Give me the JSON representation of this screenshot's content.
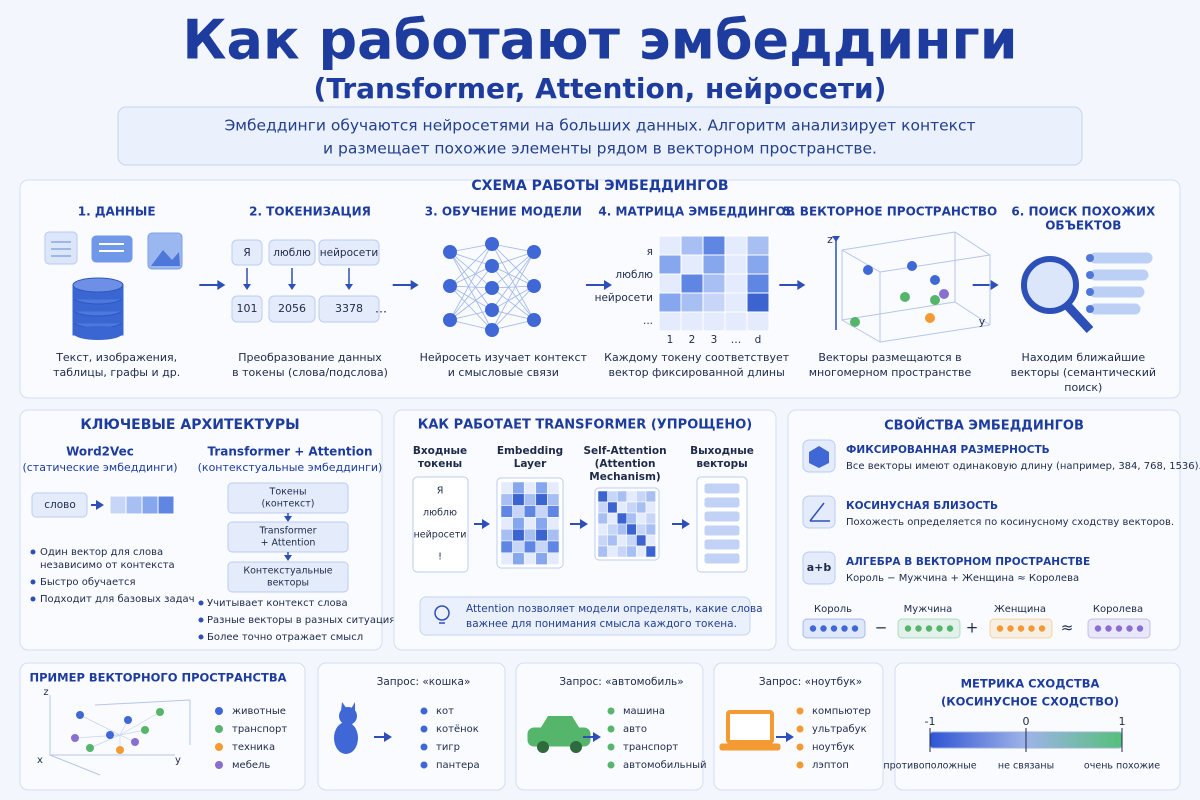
{
  "header": {
    "title": "Как работают эмбеддинги",
    "subtitle": "(Transformer, Attention, нейросети)",
    "intro": [
      "Эмбеддинги обучаются нейросетями на больших данных. Алгоритм анализирует контекст",
      "и размещает похожие элементы рядом в векторном пространстве."
    ]
  },
  "pipeline": {
    "title": "СХЕМА РАБОТЫ ЭМБЕДДИНГОВ",
    "steps": [
      {
        "title": [
          "1. ДАННЫЕ"
        ],
        "caption": [
          "Текст, изображения,",
          "таблицы, графы и др."
        ]
      },
      {
        "title": [
          "2. ТОКЕНИЗАЦИЯ"
        ],
        "caption": [
          "Преобразование данных",
          "в токены (слова/подслова)"
        ],
        "tokens": [
          "Я",
          "люблю",
          "нейросети"
        ],
        "ids": [
          101,
          2056,
          3378
        ],
        "ellipsis": "…"
      },
      {
        "title": [
          "3. ОБУЧЕНИЕ МОДЕЛИ"
        ],
        "caption": [
          "Нейросеть изучает контекст",
          "и смысловые связи"
        ]
      },
      {
        "title": [
          "4. МАТРИЦА ЭМБЕДДИНГОВ"
        ],
        "caption": [
          "Каждому токену соответствует",
          "вектор фиксированной длины"
        ],
        "rows": [
          "я",
          "люблю",
          "нейросети",
          "..."
        ],
        "cols": [
          1,
          2,
          3,
          "…",
          "d"
        ]
      },
      {
        "title": [
          "5. ВЕКТОРНОЕ ПРОСТРАНСТВО"
        ],
        "caption": [
          "Векторы размещаются в",
          "многомерном пространстве"
        ],
        "axes": [
          "z",
          "y"
        ]
      },
      {
        "title": [
          "6. ПОИСК ПОХОЖИХ",
          "ОБЪЕКТОВ"
        ],
        "caption": [
          "Находим ближайшие",
          "векторы (семантический",
          "поиск)"
        ]
      }
    ]
  },
  "architectures": {
    "title": "КЛЮЧЕВЫЕ АРХИТЕКТУРЫ",
    "word2vec": {
      "name": "Word2Vec",
      "sub": "(статические эмбеддинги)",
      "word": "слово",
      "bullets": [
        [
          "Один вектор для слова",
          "независимо от контекста"
        ],
        [
          "Быстро обучается"
        ],
        [
          "Подходит для базовых задач"
        ]
      ]
    },
    "transformer": {
      "name": "Transformer + Attention",
      "sub": "(контекстуальные эмбеддинги)",
      "flow": [
        [
          "Токены",
          "(контекст)"
        ],
        [
          "Transformer",
          "+ Attention"
        ],
        [
          "Контекстуальные",
          "векторы"
        ]
      ],
      "bullets": [
        [
          "Учитывает контекст слова"
        ],
        [
          "Разные векторы в разных ситуациях"
        ],
        [
          "Более точно отражает смысл"
        ]
      ]
    }
  },
  "transformer": {
    "title": "КАК РАБОТАЕТ TRANSFORMER (УПРОЩЕНО)",
    "columns": [
      [
        "Входные",
        "токены"
      ],
      [
        "Embedding",
        "Layer"
      ],
      [
        "Self-Attention",
        "(Attention",
        "Mechanism)"
      ],
      [
        "Выходные",
        "векторы"
      ]
    ],
    "tokens": [
      "Я",
      "люблю",
      "нейросети",
      "!"
    ],
    "note": [
      "Attention позволяет модели определять, какие слова",
      "важнее для понимания смысла каждого токена."
    ]
  },
  "properties": {
    "title": "СВОЙСТВА ЭМБЕДДИНГОВ",
    "items": [
      {
        "title": "ФИКСИРОВАННАЯ РАЗМЕРНОСТЬ",
        "text": "Все векторы имеют одинаковую длину (например, 384, 768, 1536)."
      },
      {
        "title": "КОСИНУСНАЯ БЛИЗОСТЬ",
        "text": "Похожесть определяется по косинусному сходству векторов."
      },
      {
        "title": "АЛГЕБРА В ВЕКТОРНОМ ПРОСТРАНСТВЕ",
        "text": "Король − Мужчина + Женщина ≈ Королева",
        "icon": "a+b"
      }
    ],
    "equation": {
      "words": [
        "Король",
        "Мужчина",
        "Женщина",
        "Королева"
      ],
      "ops": [
        "−",
        "+",
        "≈"
      ]
    }
  },
  "example": {
    "title": "ПРИМЕР ВЕКТОРНОГО ПРОСТРАНСТВА",
    "axes": [
      "z",
      "x",
      "y"
    ],
    "legend": [
      "животные",
      "транспорт",
      "техника",
      "мебель"
    ]
  },
  "queries": [
    {
      "query": "Запрос: «кошка»",
      "results": [
        "кот",
        "котёнок",
        "тигр",
        "пантера"
      ]
    },
    {
      "query": "Запрос: «автомобиль»",
      "results": [
        "машина",
        "авто",
        "транспорт",
        "автомобильный"
      ]
    },
    {
      "query": "Запрос: «ноутбук»",
      "results": [
        "компьютер",
        "ультрабук",
        "ноутбук",
        "лэптоп"
      ]
    }
  ],
  "metric": {
    "title": [
      "МЕТРИКА СХОДСТВА",
      "(КОСИНУСНОЕ СХОДСТВО)"
    ],
    "ticks": [
      -1,
      0,
      1
    ],
    "captions": [
      "противоположные",
      "не связаны",
      "очень похожие"
    ]
  }
}
